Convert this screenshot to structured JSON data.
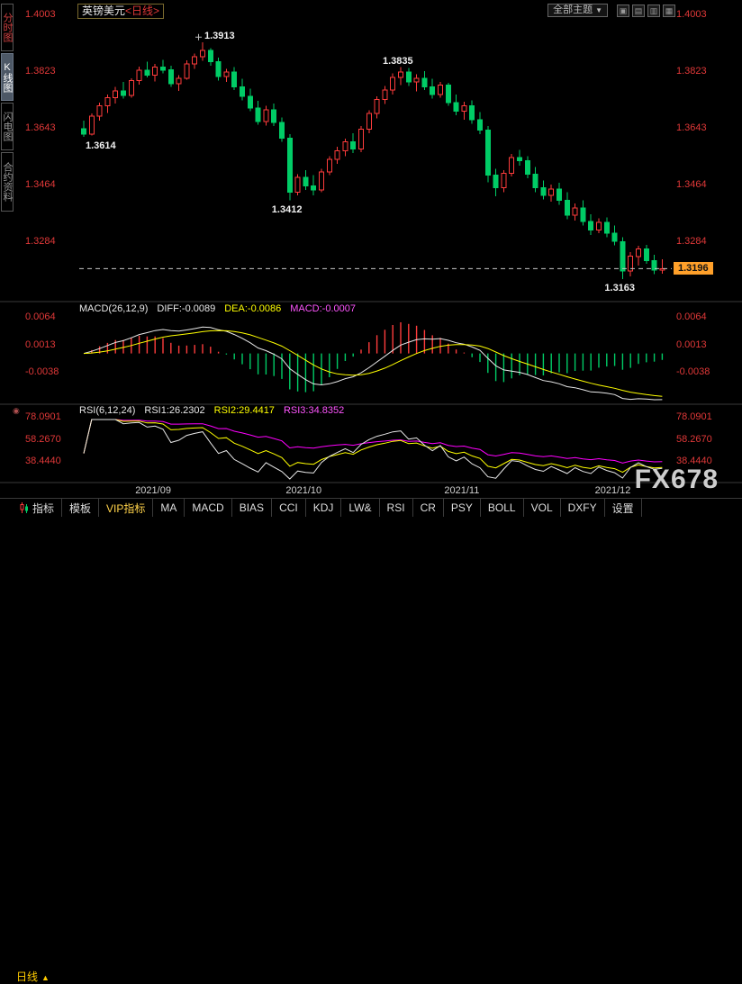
{
  "header": {
    "symbol": "英镑美元",
    "period_tag": "<日线>",
    "theme_label": "全部主题",
    "theme_caret": "▼"
  },
  "window_buttons": [
    {
      "name": "window-grid-icon",
      "glyph": "▣"
    },
    {
      "name": "window-tile-horizontal-icon",
      "glyph": "▤"
    },
    {
      "name": "window-tile-vertical-icon",
      "glyph": "▥"
    },
    {
      "name": "window-cascade-icon",
      "glyph": "▦"
    }
  ],
  "sidebar": {
    "items": [
      {
        "label": "分时图",
        "active": false
      },
      {
        "label": "K线图",
        "active": true
      },
      {
        "label": "闪电图",
        "active": false
      },
      {
        "label": "合约资料",
        "active": false
      }
    ]
  },
  "chart_data": {
    "type": "candlestick",
    "title": "英镑美元 日线 (GBP/USD Daily)",
    "price_axis": [
      "1.4003",
      "1.3823",
      "1.3643",
      "1.3464",
      "1.3284"
    ],
    "price_axis_values": [
      1.4003,
      1.3823,
      1.3643,
      1.3464,
      1.3284
    ],
    "scale": {
      "min": 1.31,
      "max": 1.4025
    },
    "last_price": 1.3196,
    "last_price_tag": "1.3196",
    "months": [
      {
        "label": "2021/09",
        "candle": 9
      },
      {
        "label": "2021/10",
        "candle": 28
      },
      {
        "label": "2021/11",
        "candle": 48
      },
      {
        "label": "2021/12",
        "candle": 67
      }
    ],
    "annotations": [
      {
        "text": "1.3614",
        "price": 1.3614,
        "candle": 0,
        "pos": "below",
        "align": "left"
      },
      {
        "text": "1.3913",
        "price": 1.3913,
        "candle": 15,
        "pos": "above",
        "marker": true
      },
      {
        "text": "1.3412",
        "price": 1.3412,
        "candle": 26,
        "pos": "below"
      },
      {
        "text": "1.3835",
        "price": 1.3835,
        "candle": 40,
        "pos": "above"
      },
      {
        "text": "1.3163",
        "price": 1.3163,
        "candle": 68,
        "pos": "below"
      }
    ],
    "candles": [
      [
        1.364,
        1.3665,
        1.3614,
        1.3622
      ],
      [
        1.3622,
        1.3688,
        1.3618,
        1.368
      ],
      [
        1.368,
        1.3722,
        1.3665,
        1.3712
      ],
      [
        1.3712,
        1.3748,
        1.369,
        1.3738
      ],
      [
        1.3738,
        1.3772,
        1.372,
        1.376
      ],
      [
        1.376,
        1.3788,
        1.3735,
        1.3745
      ],
      [
        1.3745,
        1.38,
        1.3738,
        1.3792
      ],
      [
        1.3792,
        1.3836,
        1.378,
        1.3825
      ],
      [
        1.3825,
        1.3852,
        1.3802,
        1.381
      ],
      [
        1.381,
        1.3845,
        1.379,
        1.3835
      ],
      [
        1.3835,
        1.3858,
        1.3815,
        1.3826
      ],
      [
        1.3826,
        1.384,
        1.3772,
        1.3782
      ],
      [
        1.3782,
        1.381,
        1.376,
        1.38
      ],
      [
        1.38,
        1.3856,
        1.3795,
        1.3845
      ],
      [
        1.3845,
        1.3878,
        1.383,
        1.3868
      ],
      [
        1.3868,
        1.3913,
        1.3855,
        1.3888
      ],
      [
        1.3888,
        1.3895,
        1.384,
        1.3852
      ],
      [
        1.3852,
        1.3865,
        1.3792,
        1.3805
      ],
      [
        1.3805,
        1.383,
        1.3788,
        1.382
      ],
      [
        1.382,
        1.3835,
        1.3762,
        1.3772
      ],
      [
        1.3772,
        1.3798,
        1.373,
        1.3742
      ],
      [
        1.3742,
        1.3766,
        1.3695,
        1.3705
      ],
      [
        1.3705,
        1.3728,
        1.3652,
        1.3662
      ],
      [
        1.3662,
        1.3712,
        1.365,
        1.37
      ],
      [
        1.37,
        1.372,
        1.3648,
        1.366
      ],
      [
        1.366,
        1.3675,
        1.3598,
        1.361
      ],
      [
        1.361,
        1.3622,
        1.3412,
        1.3438
      ],
      [
        1.3438,
        1.3495,
        1.3428,
        1.3485
      ],
      [
        1.3485,
        1.3508,
        1.3445,
        1.3458
      ],
      [
        1.3458,
        1.3492,
        1.3428,
        1.3445
      ],
      [
        1.3445,
        1.3512,
        1.3438,
        1.3502
      ],
      [
        1.3502,
        1.3552,
        1.3492,
        1.3542
      ],
      [
        1.3542,
        1.3582,
        1.3528,
        1.357
      ],
      [
        1.357,
        1.3608,
        1.3552,
        1.3598
      ],
      [
        1.3598,
        1.3625,
        1.3562,
        1.3575
      ],
      [
        1.3575,
        1.3648,
        1.3565,
        1.3638
      ],
      [
        1.3638,
        1.3698,
        1.3625,
        1.3688
      ],
      [
        1.3688,
        1.3742,
        1.3672,
        1.3732
      ],
      [
        1.3732,
        1.3775,
        1.3718,
        1.3762
      ],
      [
        1.3762,
        1.3815,
        1.3748,
        1.3802
      ],
      [
        1.3802,
        1.3835,
        1.3778,
        1.382
      ],
      [
        1.382,
        1.3832,
        1.3775,
        1.3788
      ],
      [
        1.3788,
        1.3812,
        1.3758,
        1.38
      ],
      [
        1.38,
        1.3822,
        1.3762,
        1.3772
      ],
      [
        1.3772,
        1.3798,
        1.3735,
        1.3748
      ],
      [
        1.3748,
        1.3788,
        1.3738,
        1.3778
      ],
      [
        1.3778,
        1.3785,
        1.3712,
        1.3722
      ],
      [
        1.3722,
        1.3748,
        1.3682,
        1.3695
      ],
      [
        1.3695,
        1.3725,
        1.3668,
        1.3712
      ],
      [
        1.3712,
        1.373,
        1.3655,
        1.3668
      ],
      [
        1.3668,
        1.3692,
        1.3622,
        1.3635
      ],
      [
        1.3635,
        1.3648,
        1.347,
        1.3492
      ],
      [
        1.3492,
        1.3512,
        1.3425,
        1.3452
      ],
      [
        1.3452,
        1.3508,
        1.3438,
        1.3498
      ],
      [
        1.3498,
        1.356,
        1.3488,
        1.3548
      ],
      [
        1.3548,
        1.3572,
        1.3522,
        1.3538
      ],
      [
        1.3538,
        1.3552,
        1.3482,
        1.3495
      ],
      [
        1.3495,
        1.3518,
        1.3438,
        1.3452
      ],
      [
        1.3452,
        1.3475,
        1.3415,
        1.3428
      ],
      [
        1.3428,
        1.3462,
        1.3408,
        1.3448
      ],
      [
        1.3448,
        1.3468,
        1.3398,
        1.3412
      ],
      [
        1.3412,
        1.3438,
        1.3352,
        1.3365
      ],
      [
        1.3365,
        1.3402,
        1.3348,
        1.3388
      ],
      [
        1.3388,
        1.3412,
        1.3332,
        1.3345
      ],
      [
        1.3345,
        1.3368,
        1.3302,
        1.3318
      ],
      [
        1.3318,
        1.3355,
        1.3308,
        1.3342
      ],
      [
        1.3342,
        1.3358,
        1.3295,
        1.3308
      ],
      [
        1.3308,
        1.3332,
        1.327,
        1.3282
      ],
      [
        1.3282,
        1.3295,
        1.3163,
        1.3188
      ],
      [
        1.3188,
        1.3248,
        1.3172,
        1.3235
      ],
      [
        1.3235,
        1.3268,
        1.3205,
        1.3258
      ],
      [
        1.3258,
        1.3272,
        1.3212,
        1.3222
      ],
      [
        1.3222,
        1.324,
        1.3178,
        1.3192
      ],
      [
        1.3192,
        1.3225,
        1.318,
        1.3196
      ]
    ]
  },
  "macd": {
    "title": "MACD(26,12,9)",
    "diff_label": "DIFF:-0.0089",
    "dea_label": "DEA:-0.0086",
    "macd_label": "MACD:-0.0007",
    "axis": [
      "0.0064",
      "0.0013",
      "-0.0038"
    ],
    "params": [
      26,
      12,
      9
    ]
  },
  "rsi": {
    "title": "RSI(6,12,24)",
    "rsi1_label": "RSI1:26.2302",
    "rsi2_label": "RSI2:29.4417",
    "rsi3_label": "RSI3:34.8352",
    "axis": [
      "78.0901",
      "58.2670",
      "38.4440"
    ],
    "params": [
      6,
      12,
      24
    ],
    "marker": "◉"
  },
  "timebar": {
    "period_label": "日线",
    "arrow": "▲"
  },
  "watermark": "FX678",
  "toolbar": {
    "items": [
      "指标",
      "模板",
      "VIP指标",
      "MA",
      "MACD",
      "BIAS",
      "CCI",
      "KDJ",
      "LW&",
      "RSI",
      "CR",
      "PSY",
      "BOLL",
      "VOL",
      "DXFY",
      "设置"
    ]
  },
  "colors": {
    "up": "#ff3c3c",
    "down": "#00cc66",
    "axis_label": "#e03838",
    "yellow": "#ffff00",
    "magenta": "#ff00ff",
    "white_line": "#e8e8e8",
    "tag_bg": "#ffa02a",
    "tab_yellow": "#ffcc00",
    "vip_yellow": "#ffd24a"
  }
}
